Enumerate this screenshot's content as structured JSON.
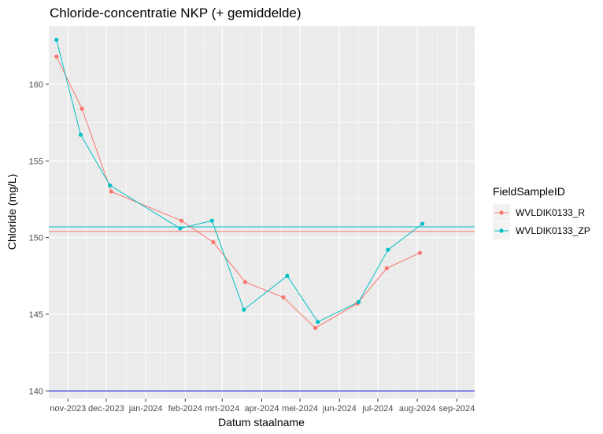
{
  "chart_data": {
    "type": "line",
    "title": "Chloride-concentratie NKP (+ gemiddelde)",
    "xlabel": "Datum staalname",
    "ylabel": "Chloride (mg/L)",
    "ylim": [
      139.5,
      163.8
    ],
    "xlim": [
      "2023-10-17",
      "2024-09-15"
    ],
    "x_ticks": [
      {
        "date": "2023-11-01",
        "label": "nov-2023"
      },
      {
        "date": "2023-12-01",
        "label": "dec-2023"
      },
      {
        "date": "2024-01-01",
        "label": "jan-2024"
      },
      {
        "date": "2024-02-01",
        "label": "feb-2024"
      },
      {
        "date": "2024-03-01",
        "label": "mrt-2024"
      },
      {
        "date": "2024-04-01",
        "label": "apr-2024"
      },
      {
        "date": "2024-05-01",
        "label": "mei-2024"
      },
      {
        "date": "2024-06-01",
        "label": "jun-2024"
      },
      {
        "date": "2024-07-01",
        "label": "jul-2024"
      },
      {
        "date": "2024-08-01",
        "label": "aug-2024"
      },
      {
        "date": "2024-09-01",
        "label": "sep-2024"
      }
    ],
    "y_ticks": [
      140,
      145,
      150,
      155,
      160
    ],
    "grid": true,
    "legend_position": "right",
    "legend_title": "FieldSampleID",
    "series": [
      {
        "name": "WVLDIK0133_R",
        "color": "#F8766D",
        "x": [
          "2023-10-23",
          "2023-11-12",
          "2023-12-05",
          "2024-01-29",
          "2024-02-23",
          "2024-03-19",
          "2024-04-18",
          "2024-05-13",
          "2024-06-15",
          "2024-07-08",
          "2024-08-03"
        ],
        "y": [
          161.8,
          158.4,
          153.0,
          151.1,
          149.7,
          147.1,
          146.1,
          144.1,
          145.7,
          148.0,
          149.0
        ]
      },
      {
        "name": "WVLDIK0133_ZP",
        "color": "#00BFC4",
        "x": [
          "2023-10-23",
          "2023-11-11",
          "2023-12-04",
          "2024-01-28",
          "2024-02-22",
          "2024-03-18",
          "2024-04-21",
          "2024-05-15",
          "2024-06-16",
          "2024-07-09",
          "2024-08-05"
        ],
        "y": [
          162.9,
          156.7,
          153.4,
          150.6,
          151.1,
          145.3,
          147.5,
          144.5,
          145.8,
          149.2,
          150.9
        ]
      }
    ],
    "reference_lines": [
      {
        "y": 150.4,
        "color": "#F8766D"
      },
      {
        "y": 150.7,
        "color": "#00BFC4"
      },
      {
        "y": 140.0,
        "color": "#0000CD"
      }
    ]
  }
}
